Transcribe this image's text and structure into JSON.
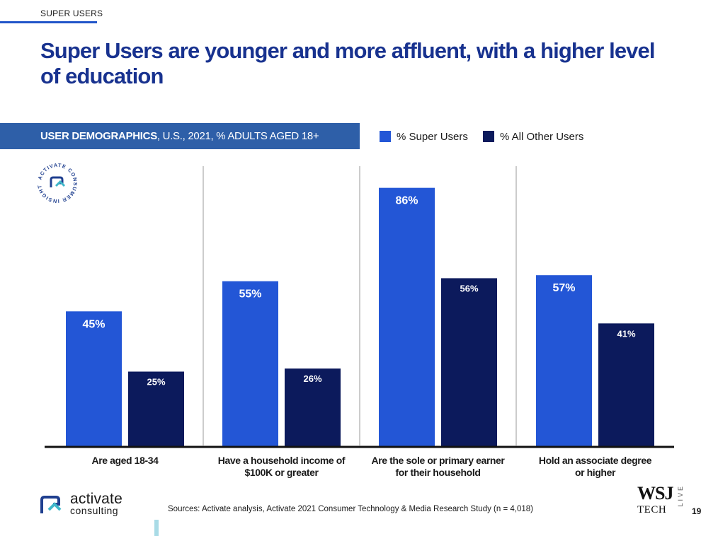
{
  "header": {
    "section_label": "SUPER USERS",
    "title": "Super Users are younger and more affluent, with a higher level of education"
  },
  "banner": {
    "bold": "USER DEMOGRAPHICS",
    "rest": ", U.S., 2021, % ADULTS AGED 18+"
  },
  "badge": {
    "text": "ACTIVATE CONSUMER INSIGHT"
  },
  "colors": {
    "super_users": "#2356d6",
    "all_other_users": "#0c1a5c",
    "title": "#18328f",
    "banner": "#2e5fa8"
  },
  "chart_data": {
    "type": "bar",
    "categories": [
      [
        "Are aged 18-34"
      ],
      [
        "Have a household income of",
        "$100K or greater"
      ],
      [
        "Are the sole or primary earner",
        "for their household"
      ],
      [
        "Hold an associate degree",
        "or higher"
      ]
    ],
    "series": [
      {
        "name": "% Super Users",
        "values": [
          45,
          55,
          86,
          57
        ],
        "labels": [
          "45%",
          "55%",
          "86%",
          "57%"
        ],
        "color": "#2356d6"
      },
      {
        "name": "% All Other Users",
        "values": [
          25,
          26,
          56,
          41
        ],
        "labels": [
          "25%",
          "26%",
          "56%",
          "41%"
        ],
        "color": "#0c1a5c"
      }
    ],
    "ylim": [
      0,
      90
    ],
    "grid": false,
    "legend_position": "top-right"
  },
  "footer": {
    "logo_line1": "activate",
    "logo_line2": "consulting",
    "sources": "Sources: Activate analysis, Activate 2021 Consumer Technology & Media Research Study (n = 4,018)",
    "wsj_top": "WSJ",
    "wsj_bottom": "TECH",
    "wsj_side": "LIVE",
    "page_number": "19"
  }
}
